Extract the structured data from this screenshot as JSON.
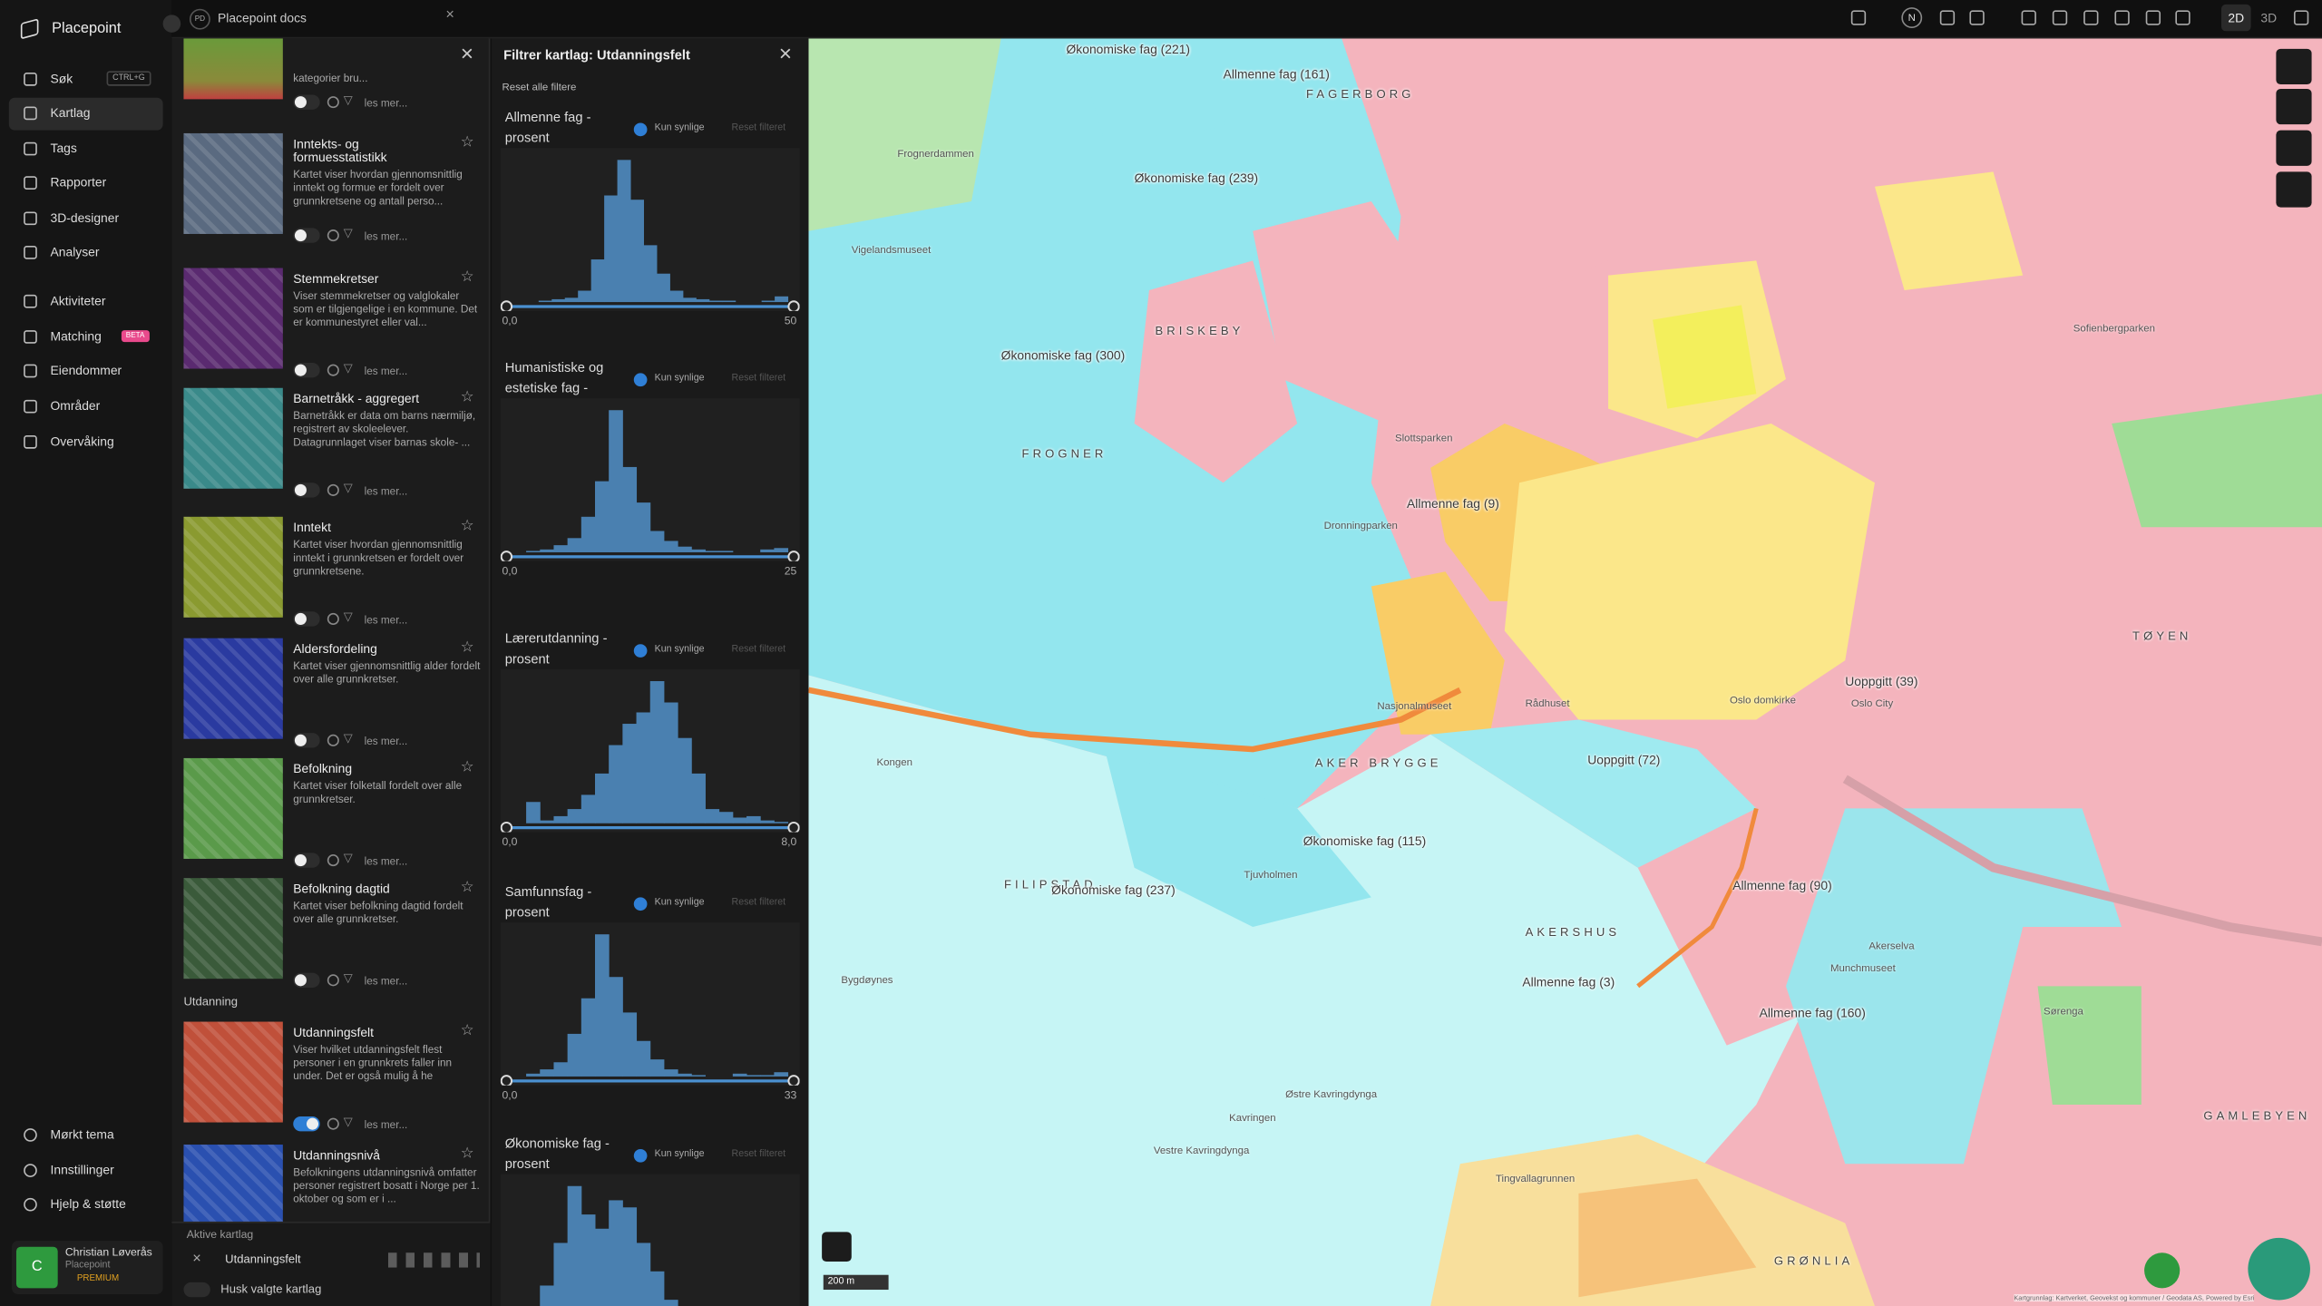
{
  "app": {
    "name": "Placepoint",
    "tab_badge": "PD",
    "tab_title": "Placepoint docs"
  },
  "nav": {
    "search_shortcut": "CTRL+G",
    "beta": "BETA",
    "items": [
      "Søk",
      "Kartlag",
      "Tags",
      "Rapporter",
      "3D-designer",
      "Analyser",
      "Aktiviteter",
      "Matching",
      "Eiendommer",
      "Områder",
      "Overvåking"
    ],
    "bottom": [
      "Mørkt tema",
      "Innstillinger",
      "Hjelp & støtte"
    ]
  },
  "user": {
    "initial": "C",
    "name": "Christian Løverås",
    "org": "Placepoint",
    "plan": "PREMIUM"
  },
  "layers": {
    "title": "Kartlag",
    "read_more": "les mer...",
    "group": "Utdanning",
    "items": [
      {
        "description": "kategorier bru..."
      },
      {
        "title": "Inntekts- og formuesstatistikk",
        "description": "Kartet viser hvordan gjennomsnittlig inntekt og formue er fordelt over grunnkretsene og antall perso..."
      },
      {
        "title": "Stemmekretser",
        "description": "Viser stemmekretser og valglokaler som er tilgjengelige i en kommune. Det er kommunestyret eller val..."
      },
      {
        "title": "Barnetråkk - aggregert",
        "description": "Barnetråkk er data om barns nærmiljø, registrert av skoleelever. Datagrunnlaget viser barnas skole- ..."
      },
      {
        "title": "Inntekt",
        "description": "Kartet viser hvordan gjennomsnittlig inntekt i grunnkretsen er fordelt over grunnkretsene."
      },
      {
        "title": "Aldersfordeling",
        "description": "Kartet viser gjennomsnittlig alder fordelt over alle grunnkretser."
      },
      {
        "title": "Befolkning",
        "description": "Kartet viser folketall fordelt over alle grunnkretser."
      },
      {
        "title": "Befolkning dagtid",
        "description": "Kartet viser befolkning dagtid fordelt over alle grunnkretser."
      },
      {
        "title": "Utdanningsfelt",
        "description": "Viser hvilket utdanningsfelt flest personer i en grunnkrets faller inn under. Det er også mulig å he"
      },
      {
        "title": "Utdanningsnivå",
        "description": "Befolkningens utdanningsnivå omfatter personer registrert bosatt i Norge per 1. oktober og som er i ..."
      }
    ],
    "active_title": "Aktive kartlag",
    "active_layer": "Utdanningsfelt",
    "remember": "Husk valgte kartlag"
  },
  "filter": {
    "title": "Filtrer kartlag: Utdanningsfelt",
    "reset_all": "Reset alle filtere",
    "only_visible": "Kun synlige",
    "reset": "Reset filteret",
    "filters": [
      {
        "name": "Allmenne fag - prosent",
        "counts": [
          0,
          0,
          1,
          2,
          3,
          8,
          30,
          75,
          100,
          72,
          40,
          20,
          8,
          3,
          2,
          1,
          1,
          0,
          0,
          1,
          4
        ],
        "min": "0,0",
        "max": "50"
      },
      {
        "name": "Humanistiske og estetiske fag - prosent",
        "counts": [
          0,
          1,
          2,
          5,
          10,
          25,
          50,
          100,
          60,
          35,
          15,
          8,
          4,
          2,
          1,
          1,
          0,
          0,
          2,
          3
        ],
        "min": "0,0",
        "max": "25"
      },
      {
        "name": "Lærerutdanning - prosent",
        "counts": [
          0,
          15,
          2,
          5,
          10,
          20,
          35,
          55,
          70,
          78,
          100,
          85,
          60,
          35,
          10,
          8,
          4,
          5,
          2,
          1
        ],
        "min": "0,0",
        "max": "8,0"
      },
      {
        "name": "Samfunnsfag - prosent",
        "counts": [
          0,
          2,
          5,
          10,
          30,
          55,
          100,
          70,
          45,
          25,
          12,
          5,
          2,
          1,
          0,
          0,
          2,
          1,
          1,
          3
        ],
        "min": "0,0",
        "max": "33"
      },
      {
        "name": "Økonomiske fag - prosent",
        "counts": [
          5,
          10,
          30,
          60,
          100,
          80,
          70,
          90,
          85,
          60,
          40,
          20,
          10,
          5,
          3,
          2,
          1,
          1,
          0,
          2
        ]
      }
    ]
  },
  "map": {
    "compass": "N",
    "mode_2d": "2D",
    "mode_3d": "3D",
    "scale": "200 m",
    "attribution": "Kartgrunnlag: Kartverket, Geovekst og kommuner / Geodata AS, Powered by Esri",
    "labels": [
      "Økonomiske fag (221)",
      "Allmenne fag (161)",
      "FAGERBORG",
      "Økonomiske fag (239)",
      "BRISKEBY",
      "FROGNER",
      "Økonomiske fag (300)",
      "Allmenne fag (9)",
      "AKER BRYGGE",
      "Økonomiske fag (115)",
      "FILIPSTAD",
      "Økonomiske fag (237)",
      "AKERSHUS",
      "Allmenne fag (3)",
      "Allmenne fag (90)",
      "Allmenne fag (160)",
      "Uoppgitt (72)",
      "Uoppgitt (39)",
      "GRØNLIA",
      "GAMLEBYEN",
      "TØYEN",
      "Nasjonalmuseet",
      "Kongen",
      "Tjuvholmen",
      "Kavringen",
      "Østre Kavringdynga",
      "Vestre Kavringdynga",
      "Tingvallagrunnen",
      "Bygdøynes",
      "Oslo City",
      "Oslo domkirke",
      "Akerselva",
      "Sofienbergparken",
      "Frognerdammen",
      "Vigelandsmuseet",
      "Slottsparken",
      "Dronningparken",
      "Rådhuset",
      "Munchmuseet",
      "Sørenga"
    ]
  }
}
